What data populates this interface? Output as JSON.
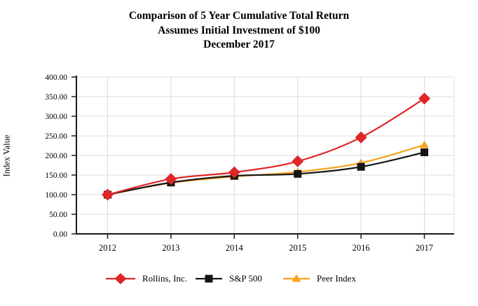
{
  "header": {
    "title_lines": [
      "Comparison of 5 Year Cumulative Total Return",
      "Assumes Initial Investment of $100",
      "December 2017"
    ]
  },
  "chart_data": {
    "type": "line",
    "title": "Comparison of 5 Year Cumulative Total Return",
    "subtitle": "Assumes Initial Investment of $100",
    "period_label": "December 2017",
    "categories": [
      "2012",
      "2013",
      "2014",
      "2015",
      "2016",
      "2017"
    ],
    "series": [
      {
        "name": "Rollins, Inc.",
        "marker": "diamond",
        "color": "#E02628",
        "values": [
          100,
          140,
          157,
          185,
          246,
          345
        ]
      },
      {
        "name": "S&P 500",
        "marker": "square",
        "color": "#151515",
        "values": [
          100,
          131,
          148,
          153,
          171,
          208
        ]
      },
      {
        "name": "Peer Index",
        "marker": "triangle",
        "color": "#F7A41F",
        "values": [
          100,
          130,
          146,
          158,
          181,
          227
        ]
      }
    ],
    "ylabel": "Index Value",
    "ylim": [
      0,
      400
    ],
    "ytick_step": 50,
    "ytick_labels": [
      "0.00",
      "50.00",
      "100.00",
      "150.00",
      "200.00",
      "250.00",
      "300.00",
      "350.00",
      "400.00"
    ],
    "grid": true,
    "legend_position": "bottom"
  },
  "style": {
    "grid_color": "#DCDCDC",
    "axis_color": "#1A1A1A"
  }
}
